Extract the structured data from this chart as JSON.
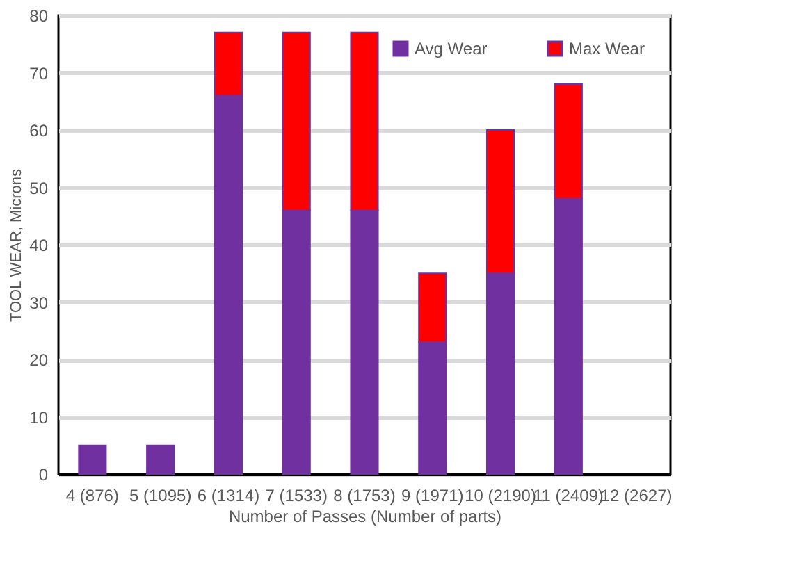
{
  "chart_data": {
    "type": "bar",
    "stacked": true,
    "xlabel": "Number of Passes (Number of parts)",
    "ylabel": "TOOL WEAR, Microns",
    "categories": [
      "4 (876)",
      "5 (1095)",
      "6 (1314)",
      "7 (1533)",
      "8 (1753)",
      "9 (1971)",
      "10 (2190)",
      "11 (2409)",
      "12 (2627)"
    ],
    "series": [
      {
        "name": "Avg Wear",
        "color": "#7030a0",
        "values": [
          5,
          5,
          66,
          46,
          46,
          23,
          35,
          48,
          null
        ]
      },
      {
        "name": "Max Wear",
        "color": "#ff0000",
        "values": [
          null,
          null,
          11,
          31,
          31,
          12,
          25,
          20,
          null
        ]
      }
    ],
    "ylim": [
      0,
      80
    ],
    "yticks": [
      0,
      10,
      20,
      30,
      40,
      50,
      60,
      70,
      80
    ],
    "grid": "y",
    "legend": "top right"
  }
}
